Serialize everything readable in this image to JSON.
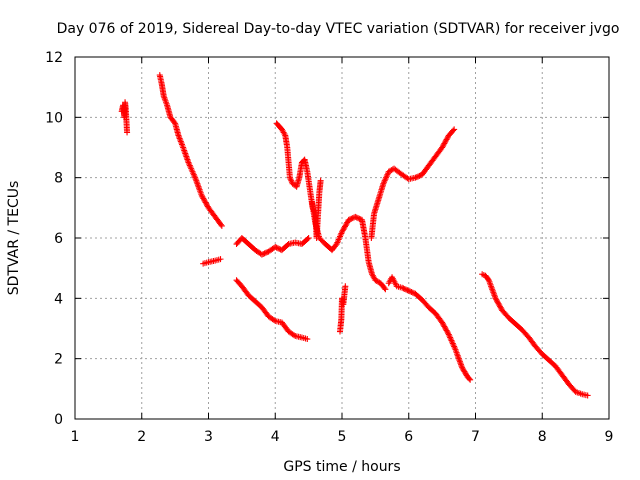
{
  "chart_data": {
    "type": "scatter",
    "title": "Day 076 of 2019, Sidereal Day-to-day VTEC variation (SDTVAR) for receiver jvgo",
    "xlabel": "GPS time / hours",
    "ylabel": "SDTVAR / TECUs",
    "xlim": [
      1,
      9
    ],
    "ylim": [
      0,
      12
    ],
    "xticks": [
      "1",
      "2",
      "3",
      "4",
      "5",
      "6",
      "7",
      "8",
      "9"
    ],
    "yticks": [
      "0",
      "2",
      "4",
      "6",
      "8",
      "10",
      "12"
    ],
    "grid": true,
    "marker": "plus",
    "series": [
      {
        "color": "#ff0000",
        "segments": [
          [
            [
              1.7,
              10.2
            ],
            [
              1.72,
              10.4
            ],
            [
              1.74,
              10.0
            ],
            [
              1.75,
              10.5
            ],
            [
              1.76,
              10.3
            ],
            [
              1.78,
              9.5
            ]
          ],
          [
            [
              2.27,
              11.4
            ],
            [
              2.3,
              11.1
            ],
            [
              2.33,
              10.7
            ],
            [
              2.38,
              10.4
            ],
            [
              2.43,
              10.0
            ],
            [
              2.5,
              9.8
            ],
            [
              2.55,
              9.4
            ],
            [
              2.62,
              9.0
            ],
            [
              2.7,
              8.5
            ],
            [
              2.8,
              8.0
            ],
            [
              2.9,
              7.4
            ],
            [
              3.0,
              7.0
            ],
            [
              3.1,
              6.7
            ],
            [
              3.2,
              6.4
            ]
          ],
          [
            [
              2.92,
              5.15
            ],
            [
              3.0,
              5.2
            ],
            [
              3.1,
              5.25
            ],
            [
              3.18,
              5.3
            ]
          ],
          [
            [
              3.42,
              5.8
            ],
            [
              3.5,
              6.0
            ],
            [
              3.6,
              5.8
            ],
            [
              3.7,
              5.6
            ],
            [
              3.8,
              5.45
            ],
            [
              3.9,
              5.55
            ],
            [
              4.0,
              5.7
            ],
            [
              4.1,
              5.6
            ],
            [
              4.2,
              5.8
            ],
            [
              4.3,
              5.85
            ],
            [
              4.4,
              5.8
            ],
            [
              4.5,
              6.0
            ]
          ],
          [
            [
              4.02,
              9.8
            ],
            [
              4.06,
              9.7
            ],
            [
              4.1,
              9.6
            ],
            [
              4.15,
              9.4
            ],
            [
              4.18,
              9.0
            ],
            [
              4.2,
              8.5
            ],
            [
              4.22,
              8.0
            ],
            [
              4.26,
              7.8
            ],
            [
              4.32,
              7.7
            ],
            [
              4.36,
              8.0
            ],
            [
              4.4,
              8.5
            ],
            [
              4.44,
              8.6
            ],
            [
              4.48,
              8.2
            ],
            [
              4.52,
              7.6
            ],
            [
              4.56,
              7.0
            ],
            [
              4.6,
              6.8
            ],
            [
              4.62,
              6.0
            ],
            [
              4.66,
              7.5
            ],
            [
              4.68,
              7.9
            ]
          ],
          [
            [
              4.55,
              7.2
            ],
            [
              4.6,
              6.5
            ],
            [
              4.66,
              6.0
            ],
            [
              4.75,
              5.8
            ],
            [
              4.85,
              5.6
            ],
            [
              4.92,
              5.8
            ],
            [
              5.0,
              6.2
            ],
            [
              5.1,
              6.6
            ],
            [
              5.2,
              6.7
            ],
            [
              5.3,
              6.6
            ],
            [
              5.35,
              6.0
            ],
            [
              5.4,
              5.2
            ],
            [
              5.45,
              4.8
            ],
            [
              5.5,
              4.6
            ],
            [
              5.58,
              4.5
            ],
            [
              5.65,
              4.3
            ]
          ],
          [
            [
              5.44,
              6.0
            ],
            [
              5.48,
              6.8
            ],
            [
              5.55,
              7.3
            ],
            [
              5.62,
              7.8
            ],
            [
              5.7,
              8.2
            ],
            [
              5.78,
              8.3
            ],
            [
              5.9,
              8.1
            ],
            [
              6.0,
              7.95
            ],
            [
              6.1,
              8.0
            ],
            [
              6.2,
              8.1
            ],
            [
              6.3,
              8.4
            ],
            [
              6.4,
              8.7
            ],
            [
              6.5,
              9.0
            ],
            [
              6.6,
              9.4
            ],
            [
              6.68,
              9.6
            ]
          ],
          [
            [
              5.7,
              4.5
            ],
            [
              5.75,
              4.7
            ],
            [
              5.82,
              4.4
            ],
            [
              5.9,
              4.35
            ],
            [
              6.0,
              4.25
            ],
            [
              6.1,
              4.15
            ],
            [
              6.2,
              3.95
            ],
            [
              6.3,
              3.7
            ],
            [
              6.4,
              3.5
            ],
            [
              6.5,
              3.2
            ],
            [
              6.6,
              2.8
            ],
            [
              6.7,
              2.3
            ],
            [
              6.8,
              1.7
            ],
            [
              6.88,
              1.4
            ],
            [
              6.92,
              1.3
            ]
          ],
          [
            [
              3.42,
              4.6
            ],
            [
              3.5,
              4.4
            ],
            [
              3.6,
              4.1
            ],
            [
              3.7,
              3.9
            ],
            [
              3.8,
              3.7
            ],
            [
              3.9,
              3.4
            ],
            [
              4.0,
              3.25
            ],
            [
              4.1,
              3.2
            ],
            [
              4.2,
              2.9
            ],
            [
              4.3,
              2.75
            ],
            [
              4.4,
              2.7
            ],
            [
              4.48,
              2.65
            ]
          ],
          [
            [
              4.97,
              2.9
            ],
            [
              4.99,
              3.3
            ],
            [
              5.0,
              4.0
            ],
            [
              5.02,
              3.8
            ],
            [
              5.05,
              4.4
            ]
          ],
          [
            [
              7.1,
              4.8
            ],
            [
              7.15,
              4.75
            ],
            [
              7.2,
              4.6
            ],
            [
              7.3,
              4.0
            ],
            [
              7.4,
              3.6
            ],
            [
              7.5,
              3.35
            ],
            [
              7.6,
              3.15
            ],
            [
              7.7,
              2.95
            ],
            [
              7.8,
              2.7
            ],
            [
              7.9,
              2.4
            ],
            [
              8.0,
              2.15
            ],
            [
              8.1,
              1.95
            ],
            [
              8.2,
              1.75
            ],
            [
              8.3,
              1.45
            ],
            [
              8.4,
              1.15
            ],
            [
              8.5,
              0.9
            ],
            [
              8.6,
              0.82
            ],
            [
              8.68,
              0.78
            ]
          ]
        ]
      }
    ]
  }
}
